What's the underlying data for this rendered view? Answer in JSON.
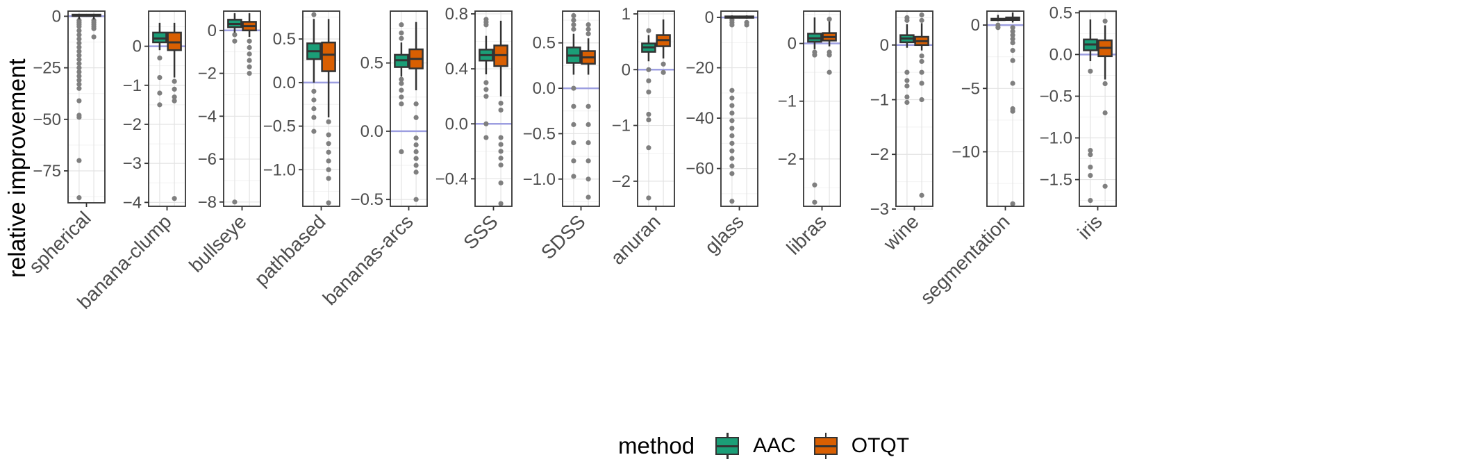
{
  "chart_data": {
    "type": "box",
    "ylabel": "relative improvement",
    "legend": {
      "title": "method",
      "position": "bottom",
      "entries": [
        {
          "name": "AAC",
          "color": "#1b9e77"
        },
        {
          "name": "OTQT",
          "color": "#d95f02"
        }
      ]
    },
    "reference_line": {
      "y": 0,
      "color": "#9c9ee0"
    },
    "grid": true,
    "facets": [
      {
        "name": "spherical",
        "ylim": [
          -90.5,
          2.5
        ],
        "ticks": [
          0,
          -25,
          -50,
          -75
        ],
        "tick_labels": [
          "0",
          "−25",
          "−50",
          "−75"
        ],
        "series": [
          {
            "method": "AAC",
            "whisker_low": -1.5,
            "q1": 0.2,
            "median": 0.5,
            "q3": 0.8,
            "whisker_high": 1.2,
            "outliers": [
              -2,
              -3,
              -4,
              -5,
              -7,
              -9,
              -11,
              -13,
              -15,
              -17,
              -19,
              -21,
              -23,
              -25,
              -27,
              -29,
              -31,
              -33,
              -35,
              -41,
              -48,
              -49,
              -70,
              -88
            ]
          },
          {
            "method": "OTQT",
            "whisker_low": -1.5,
            "q1": 0.2,
            "median": 0.5,
            "q3": 0.8,
            "whisker_high": 1.2,
            "outliers": [
              -2,
              -3,
              -4,
              -5,
              -6,
              -10
            ]
          }
        ]
      },
      {
        "name": "banana-clump",
        "ylim": [
          -4.1,
          0.9
        ],
        "ticks": [
          0,
          -1,
          -2,
          -3,
          -4
        ],
        "tick_labels": [
          "0",
          "−1",
          "−2",
          "−3",
          "−4"
        ],
        "series": [
          {
            "method": "AAC",
            "whisker_low": -0.1,
            "q1": 0.1,
            "median": 0.2,
            "q3": 0.35,
            "whisker_high": 0.6,
            "outliers": [
              -0.3,
              -0.8,
              -1.2,
              -1.5
            ]
          },
          {
            "method": "OTQT",
            "whisker_low": -0.8,
            "q1": -0.1,
            "median": 0.1,
            "q3": 0.35,
            "whisker_high": 0.6,
            "outliers": [
              -0.9,
              -1.1,
              -1.3,
              -1.4,
              -3.9
            ]
          }
        ]
      },
      {
        "name": "bullseye",
        "ylim": [
          -8.2,
          0.9
        ],
        "ticks": [
          0,
          -2,
          -4,
          -6,
          -8
        ],
        "tick_labels": [
          "0",
          "−2",
          "−4",
          "−6",
          "−8"
        ],
        "series": [
          {
            "method": "AAC",
            "whisker_low": -0.1,
            "q1": 0.15,
            "median": 0.3,
            "q3": 0.5,
            "whisker_high": 0.8,
            "outliers": [
              -0.2,
              -0.5,
              -8.0
            ]
          },
          {
            "method": "OTQT",
            "whisker_low": -0.3,
            "q1": 0.0,
            "median": 0.2,
            "q3": 0.4,
            "whisker_high": 0.8,
            "outliers": [
              -0.5,
              -0.8,
              -1.1,
              -1.4,
              -1.7,
              -2.0
            ]
          }
        ]
      },
      {
        "name": "pathbased",
        "ylim": [
          -1.42,
          0.82
        ],
        "ticks": [
          0.5,
          0.0,
          -0.5,
          -1.0
        ],
        "tick_labels": [
          "0.5",
          "0.0",
          "−0.5",
          "−1.0"
        ],
        "series": [
          {
            "method": "AAC",
            "whisker_low": 0.0,
            "q1": 0.27,
            "median": 0.36,
            "q3": 0.45,
            "whisker_high": 0.73,
            "outliers": [
              -0.1,
              -0.2,
              -0.3,
              -0.4,
              -0.56,
              0.78
            ]
          },
          {
            "method": "OTQT",
            "whisker_low": -0.4,
            "q1": 0.13,
            "median": 0.32,
            "q3": 0.46,
            "whisker_high": 0.73,
            "outliers": [
              -0.45,
              -0.6,
              -0.7,
              -0.8,
              -0.9,
              -1.0,
              -1.1,
              -1.38
            ]
          }
        ]
      },
      {
        "name": "bananas-arcs",
        "ylim": [
          -0.55,
          0.88
        ],
        "ticks": [
          0.5,
          0.0,
          -0.5
        ],
        "tick_labels": [
          "0.5",
          "0.0",
          "−0.5"
        ],
        "series": [
          {
            "method": "AAC",
            "whisker_low": 0.4,
            "q1": 0.47,
            "median": 0.52,
            "q3": 0.56,
            "whisker_high": 0.65,
            "outliers": [
              0.2,
              0.25,
              0.3,
              0.35,
              0.38,
              0.68,
              0.72,
              0.78,
              -0.15
            ]
          },
          {
            "method": "OTQT",
            "whisker_low": 0.3,
            "q1": 0.46,
            "median": 0.53,
            "q3": 0.6,
            "whisker_high": 0.8,
            "outliers": [
              -0.05,
              -0.1,
              -0.15,
              -0.2,
              -0.25,
              -0.3,
              -0.5,
              0.1,
              0.2
            ]
          }
        ]
      },
      {
        "name": "SSS",
        "ylim": [
          -0.6,
          0.82
        ],
        "ticks": [
          0.8,
          0.4,
          0.0,
          -0.4
        ],
        "tick_labels": [
          "0.8",
          "0.4",
          "0.0",
          "−0.4"
        ],
        "series": [
          {
            "method": "AAC",
            "whisker_low": 0.36,
            "q1": 0.46,
            "median": 0.5,
            "q3": 0.54,
            "whisker_high": 0.64,
            "outliers": [
              0.3,
              0.25,
              0.2,
              0.0,
              -0.1,
              0.72,
              0.74,
              0.76
            ]
          },
          {
            "method": "OTQT",
            "whisker_low": 0.2,
            "q1": 0.42,
            "median": 0.5,
            "q3": 0.57,
            "whisker_high": 0.75,
            "outliers": [
              -0.1,
              -0.15,
              -0.2,
              -0.25,
              -0.3,
              -0.43,
              -0.58,
              0.1,
              0.15
            ]
          }
        ]
      },
      {
        "name": "SDSS",
        "ylim": [
          -1.3,
          0.85
        ],
        "ticks": [
          0.5,
          0.0,
          -0.5,
          -1.0
        ],
        "tick_labels": [
          "0.5",
          "0.0",
          "−0.5",
          "−1.0"
        ],
        "series": [
          {
            "method": "AAC",
            "whisker_low": 0.15,
            "q1": 0.28,
            "median": 0.36,
            "q3": 0.45,
            "whisker_high": 0.6,
            "outliers": [
              0.0,
              -0.2,
              -0.4,
              -0.6,
              -0.8,
              -0.97,
              0.65,
              0.7,
              0.75,
              0.8
            ]
          },
          {
            "method": "OTQT",
            "whisker_low": 0.15,
            "q1": 0.27,
            "median": 0.34,
            "q3": 0.41,
            "whisker_high": 0.55,
            "outliers": [
              -0.2,
              -0.4,
              -0.6,
              -0.8,
              -1.0,
              -1.2,
              0.6,
              0.65,
              0.7
            ]
          }
        ]
      },
      {
        "name": "anuran",
        "ylim": [
          -2.45,
          1.05
        ],
        "ticks": [
          1,
          0,
          -1,
          -2
        ],
        "tick_labels": [
          "1",
          "0",
          "−1",
          "−2"
        ],
        "series": [
          {
            "method": "AAC",
            "whisker_low": 0.15,
            "q1": 0.32,
            "median": 0.4,
            "q3": 0.47,
            "whisker_high": 0.62,
            "outliers": [
              0.0,
              -0.2,
              -0.4,
              -0.8,
              -0.9,
              -1.4,
              -2.3,
              0.7
            ]
          },
          {
            "method": "OTQT",
            "whisker_low": 0.2,
            "q1": 0.42,
            "median": 0.53,
            "q3": 0.62,
            "whisker_high": 0.9,
            "outliers": [
              -0.05,
              0.1
            ]
          }
        ]
      },
      {
        "name": "glass",
        "ylim": [
          -75,
          2.5
        ],
        "ticks": [
          0,
          -20,
          -40,
          -60
        ],
        "tick_labels": [
          "0",
          "−20",
          "−40",
          "−60"
        ],
        "series": [
          {
            "method": "AAC",
            "whisker_low": -0.5,
            "q1": 0.0,
            "median": 0.2,
            "q3": 0.4,
            "whisker_high": 0.8,
            "outliers": [
              -1,
              -2,
              -3,
              -29,
              -32,
              -35,
              -38,
              -41,
              -44,
              -47,
              -50,
              -53,
              -56,
              -59,
              -62,
              -73
            ]
          },
          {
            "method": "OTQT",
            "whisker_low": -0.5,
            "q1": 0.0,
            "median": 0.2,
            "q3": 0.4,
            "whisker_high": 0.8,
            "outliers": [
              -2,
              -3
            ]
          }
        ]
      },
      {
        "name": "libras",
        "ylim": [
          -2.82,
          0.56
        ],
        "ticks": [
          0,
          -1,
          -2
        ],
        "tick_labels": [
          "0",
          "−1",
          "−2"
        ],
        "series": [
          {
            "method": "AAC",
            "whisker_low": -0.1,
            "q1": 0.03,
            "median": 0.09,
            "q3": 0.17,
            "whisker_high": 0.45,
            "outliers": [
              -0.15,
              -0.2,
              -2.45,
              -2.75
            ]
          },
          {
            "method": "OTQT",
            "whisker_low": -0.05,
            "q1": 0.05,
            "median": 0.11,
            "q3": 0.18,
            "whisker_high": 0.38,
            "outliers": [
              -0.15,
              -0.2,
              -0.5,
              0.42
            ]
          }
        ]
      },
      {
        "name": "wine",
        "ylim": [
          -2.95,
          0.62
        ],
        "ticks": [
          0,
          -1,
          -2,
          -3
        ],
        "tick_labels": [
          "0",
          "−1",
          "−2",
          "−3"
        ],
        "series": [
          {
            "method": "AAC",
            "whisker_low": -0.05,
            "q1": 0.05,
            "median": 0.12,
            "q3": 0.18,
            "whisker_high": 0.38,
            "outliers": [
              -0.5,
              -0.65,
              -0.75,
              -0.95,
              -1.05,
              0.45,
              0.5
            ]
          },
          {
            "method": "OTQT",
            "whisker_low": -0.1,
            "q1": 0.0,
            "median": 0.07,
            "q3": 0.15,
            "whisker_high": 0.4,
            "outliers": [
              -0.2,
              -0.3,
              -0.5,
              -0.7,
              -1.0,
              -2.75,
              0.45,
              0.55
            ]
          }
        ]
      },
      {
        "name": "segmentation",
        "ylim": [
          -14.3,
          1.1
        ],
        "ticks": [
          0,
          -5,
          -10
        ],
        "tick_labels": [
          "0",
          "−5",
          "−10"
        ],
        "series": [
          {
            "method": "AAC",
            "whisker_low": 0.3,
            "q1": 0.4,
            "median": 0.45,
            "q3": 0.5,
            "whisker_high": 0.8,
            "outliers": [
              0.0,
              -0.2
            ]
          },
          {
            "method": "OTQT",
            "whisker_low": 0.2,
            "q1": 0.4,
            "median": 0.5,
            "q3": 0.6,
            "whisker_high": 1.0,
            "outliers": [
              -0.2,
              -0.5,
              -0.8,
              -1.1,
              -1.4,
              -2.0,
              -2.8,
              -4.6,
              -6.6,
              -6.8,
              -14.1
            ]
          }
        ]
      },
      {
        "name": "iris",
        "ylim": [
          -1.82,
          0.52
        ],
        "ticks": [
          0.5,
          0.0,
          -0.5,
          -1.0,
          -1.5
        ],
        "tick_labels": [
          "0.5",
          "0.0",
          "−0.5",
          "−1.0",
          "−1.5"
        ],
        "series": [
          {
            "method": "AAC",
            "whisker_low": -0.08,
            "q1": 0.05,
            "median": 0.12,
            "q3": 0.18,
            "whisker_high": 0.42,
            "outliers": [
              -0.2,
              -1.15,
              -1.2,
              -1.35,
              -1.45,
              -1.75
            ]
          },
          {
            "method": "OTQT",
            "whisker_low": -0.3,
            "q1": -0.02,
            "median": 0.08,
            "q3": 0.17,
            "whisker_high": 0.35,
            "outliers": [
              -0.35,
              -0.7,
              -1.58,
              0.4
            ]
          }
        ]
      }
    ]
  }
}
